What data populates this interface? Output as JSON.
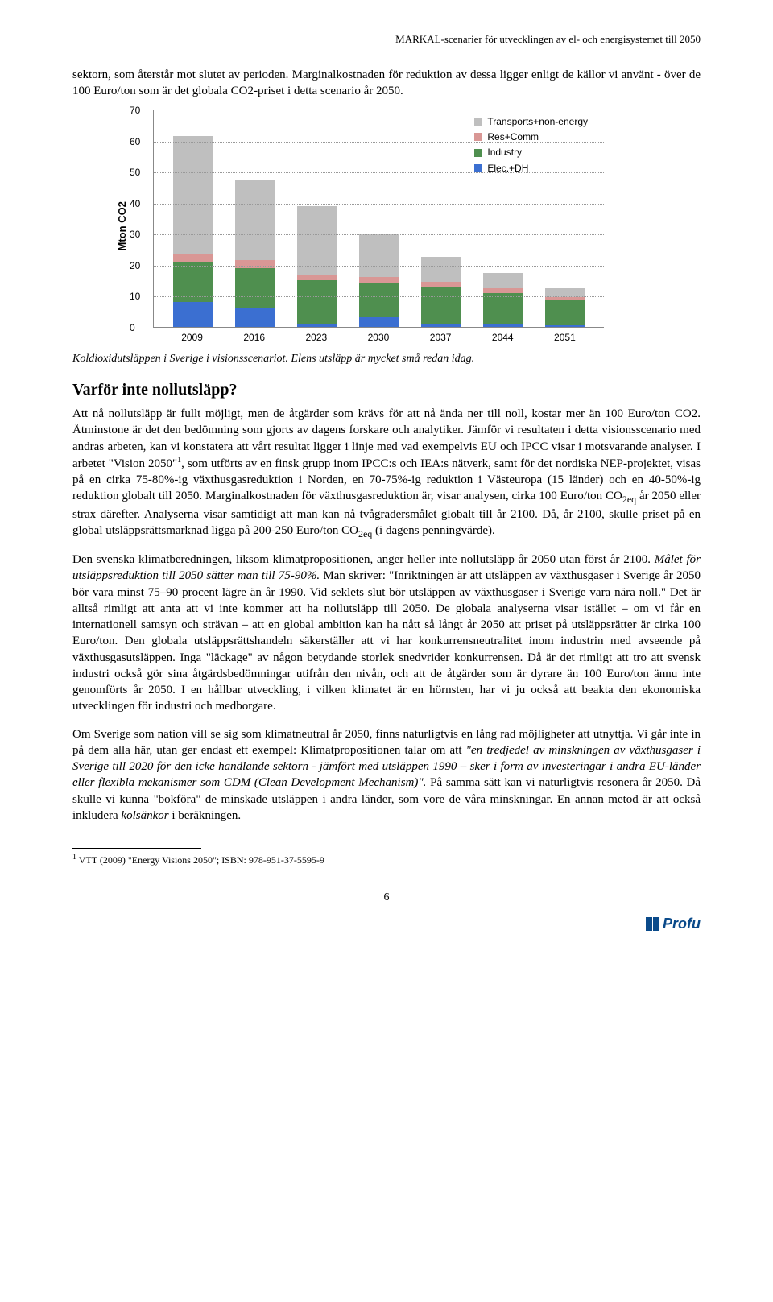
{
  "header": "MARKAL-scenarier för utvecklingen av el- och energisystemet till 2050",
  "para1": "sektorn, som återstår mot slutet av perioden. Marginalkostnaden för reduktion av dessa ligger enligt de källor vi använt - över de 100 Euro/ton som är det globala CO2-priset i detta scenario år 2050.",
  "chart": {
    "ylabel": "Mton CO2",
    "ymax": 70,
    "yticks": [
      0,
      10,
      20,
      30,
      40,
      50,
      60,
      70
    ],
    "categories": [
      "2009",
      "2016",
      "2023",
      "2030",
      "2037",
      "2044",
      "2051"
    ],
    "legend": [
      {
        "label": "Transports+non-energy",
        "color": "#bfbfbf"
      },
      {
        "label": "Res+Comm",
        "color": "#d99795"
      },
      {
        "label": "Industry",
        "color": "#4f8f4f"
      },
      {
        "label": "Elec.+DH",
        "color": "#3b6fd1"
      }
    ],
    "series": {
      "elec": [
        8,
        6,
        1,
        3,
        1,
        1,
        0.5
      ],
      "industry": [
        13,
        13,
        14,
        11,
        12,
        10,
        8
      ],
      "rescomm": [
        2.5,
        2.5,
        2,
        2,
        1.5,
        1.5,
        1
      ],
      "transport": [
        38,
        26,
        22,
        14,
        8,
        5,
        3
      ]
    }
  },
  "caption": "Koldioxidutsläppen i Sverige i visionsscenariot. Elens utsläpp är mycket små redan idag.",
  "h2": "Varför inte nollutsläpp?",
  "para2a": "Att nå nollutsläpp är fullt möjligt, men de åtgärder som krävs för att nå ända ner till noll, kostar mer än 100 Euro/ton CO2. Åtminstone är det den bedömning som gjorts av dagens forskare och analytiker. Jämför vi resultaten i detta visionsscenario med andras arbeten, kan vi konstatera att vårt resultat ligger i linje med vad exempelvis EU och IPCC visar i motsvarande analyser. I arbetet \"Vision 2050\"",
  "para2b": ", som utförts av en finsk grupp inom IPCC:s och IEA:s nätverk, samt för det nordiska NEP-projektet, visas på en cirka 75-80%-ig växthusgasreduktion i Norden, en 70-75%-ig reduktion i Västeuropa (15 länder) och en 40-50%-ig reduktion globalt till 2050. Marginalkostnaden för växthusgasreduktion är, visar analysen, cirka 100 Euro/ton CO",
  "para2c": " år 2050 eller strax därefter. Analyserna visar samtidigt att man kan nå tvågradersmålet globalt till år 2100. Då, år 2100, skulle priset på en global utsläppsrättsmarknad ligga på 200-250 Euro/ton CO",
  "para2d": " (i dagens penningvärde).",
  "para3a": "Den svenska klimatberedningen, liksom klimatpropositionen, anger heller inte nollutsläpp år 2050 utan först år 2100. ",
  "para3i": "Målet för utsläppsreduktion till 2050 sätter man till 75-90%.",
  "para3b": " Man skriver: \"Inriktningen är att utsläppen av växthusgaser i Sverige år 2050 bör vara minst 75–90 procent lägre än år 1990. Vid seklets slut bör utsläppen av växthusgaser i Sverige vara nära noll.\" Det är alltså rimligt att anta att vi inte kommer att ha nollutsläpp till 2050. De globala analyserna visar istället – om vi får en internationell samsyn och strävan – att en global ambition kan ha nått så långt år 2050 att priset på utsläppsrätter är cirka 100 Euro/ton. Den globala utsläppsrättshandeln säkerställer att vi har konkurrensneutralitet inom industrin med avseende på växthusgasutsläppen. Inga \"läckage\" av någon betydande storlek snedvrider konkurrensen. Då är det rimligt att tro att svensk industri också gör sina åtgärdsbedömningar utifrån den nivån, och att de åtgärder som är dyrare än 100 Euro/ton ännu inte genomförts år 2050. I en hållbar utveckling, i vilken klimatet är en hörnsten, har vi ju också att beakta den ekonomiska utvecklingen för industri och medborgare.",
  "para4a": "Om Sverige som nation vill se sig som klimatneutral år 2050, finns naturligtvis en lång rad möjligheter att utnyttja. Vi går inte in på dem alla här, utan ger endast ett exempel: Klimatpropositionen talar om att ",
  "para4i": "\"en tredjedel av minskningen av växthusgaser i Sverige till 2020 för den icke handlande sektorn - jämfört med utsläppen 1990 – sker i form av investeringar i andra EU-länder eller flexibla mekanismer som CDM (Clean Development Mechanism)\".",
  "para4b": " På samma sätt kan vi naturligtvis resonera år 2050. Då skulle vi kunna \"bokföra\" de minskade utsläppen i andra länder, som vore de våra minskningar. En annan metod är att också inkludera ",
  "para4i2": "kolsänkor",
  "para4c": " i beräkningen.",
  "footnote_num": "1",
  "footnote": " VTT (2009) \"Energy Visions 2050\"; ISBN: 978-951-37-5595-9",
  "pagenum": "6",
  "logo": "Profu",
  "sub2eq": "2eq"
}
